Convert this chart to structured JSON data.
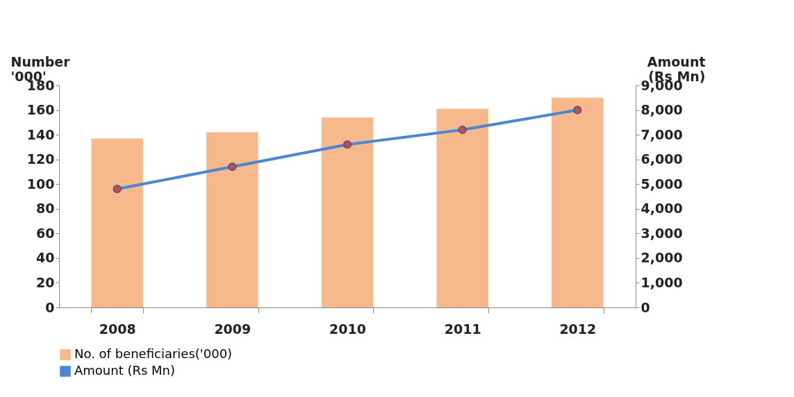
{
  "chart_data": {
    "type": "bar",
    "categories": [
      "2008",
      "2009",
      "2010",
      "2011",
      "2012"
    ],
    "series": [
      {
        "name": "No. of beneficiaries('000)",
        "color": "#f7b98c",
        "values": [
          137,
          142,
          154,
          161,
          170
        ]
      },
      {
        "name": "Amount (Rs Mn)",
        "type": "line",
        "axis": "y2",
        "color": "#4a86d4",
        "values": [
          4800,
          5700,
          6600,
          7200,
          8000
        ]
      }
    ],
    "ylabel": "Number '000'",
    "y2label": "Amount (Rs Mn)",
    "ylim": [
      0,
      180
    ],
    "yticks": [
      0,
      20,
      40,
      60,
      80,
      100,
      120,
      140,
      160,
      180
    ],
    "y2lim": [
      0,
      9000
    ],
    "y2ticks": [
      0,
      {
        "value": 1000,
        "label": "1,000"
      },
      {
        "value": 2000,
        "label": "2,000"
      },
      {
        "value": 3000,
        "label": "3,000"
      },
      {
        "value": 4000,
        "label": "4,000"
      },
      {
        "value": 5000,
        "label": "5,000"
      },
      {
        "value": 6000,
        "label": "6,000"
      },
      {
        "value": 7000,
        "label": "7,000"
      },
      {
        "value": 8000,
        "label": "8,000"
      },
      {
        "value": 9000,
        "label": "9,000"
      }
    ],
    "marker": "circle",
    "grid": false,
    "legend": "bottom"
  }
}
